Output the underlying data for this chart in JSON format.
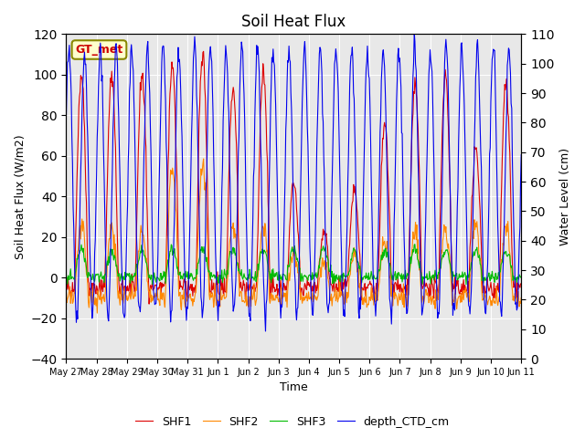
{
  "title": "Soil Heat Flux",
  "ylabel_left": "Soil Heat Flux (W/m2)",
  "ylabel_right": "Water Level (cm)",
  "xlabel": "Time",
  "ylim_left": [
    -40,
    120
  ],
  "ylim_right": [
    0,
    110
  ],
  "annotation_text": "GT_met",
  "annotation_color": "#cc0000",
  "annotation_bg": "#ffffcc",
  "annotation_border": "#888800",
  "bg_color": "#e8e8e8",
  "legend_labels": [
    "SHF1",
    "SHF2",
    "SHF3",
    "depth_CTD_cm"
  ],
  "line_colors": [
    "#dd0000",
    "#ff8800",
    "#00bb00",
    "#0000ee"
  ],
  "xtick_labels": [
    "May 27",
    "May 28",
    "May 29",
    "May 30",
    "May 31",
    "Jun 1",
    "Jun 2",
    "Jun 3",
    "Jun 4",
    "Jun 5",
    "Jun 6",
    "Jun 7",
    "Jun 8",
    "Jun 9",
    "Jun 10",
    "Jun 11"
  ],
  "yticks_left": [
    -40,
    -20,
    0,
    20,
    40,
    60,
    80,
    100,
    120
  ],
  "yticks_right": [
    0,
    10,
    20,
    30,
    40,
    50,
    60,
    70,
    80,
    90,
    100,
    110
  ],
  "figsize": [
    6.4,
    4.8
  ],
  "dpi": 100
}
